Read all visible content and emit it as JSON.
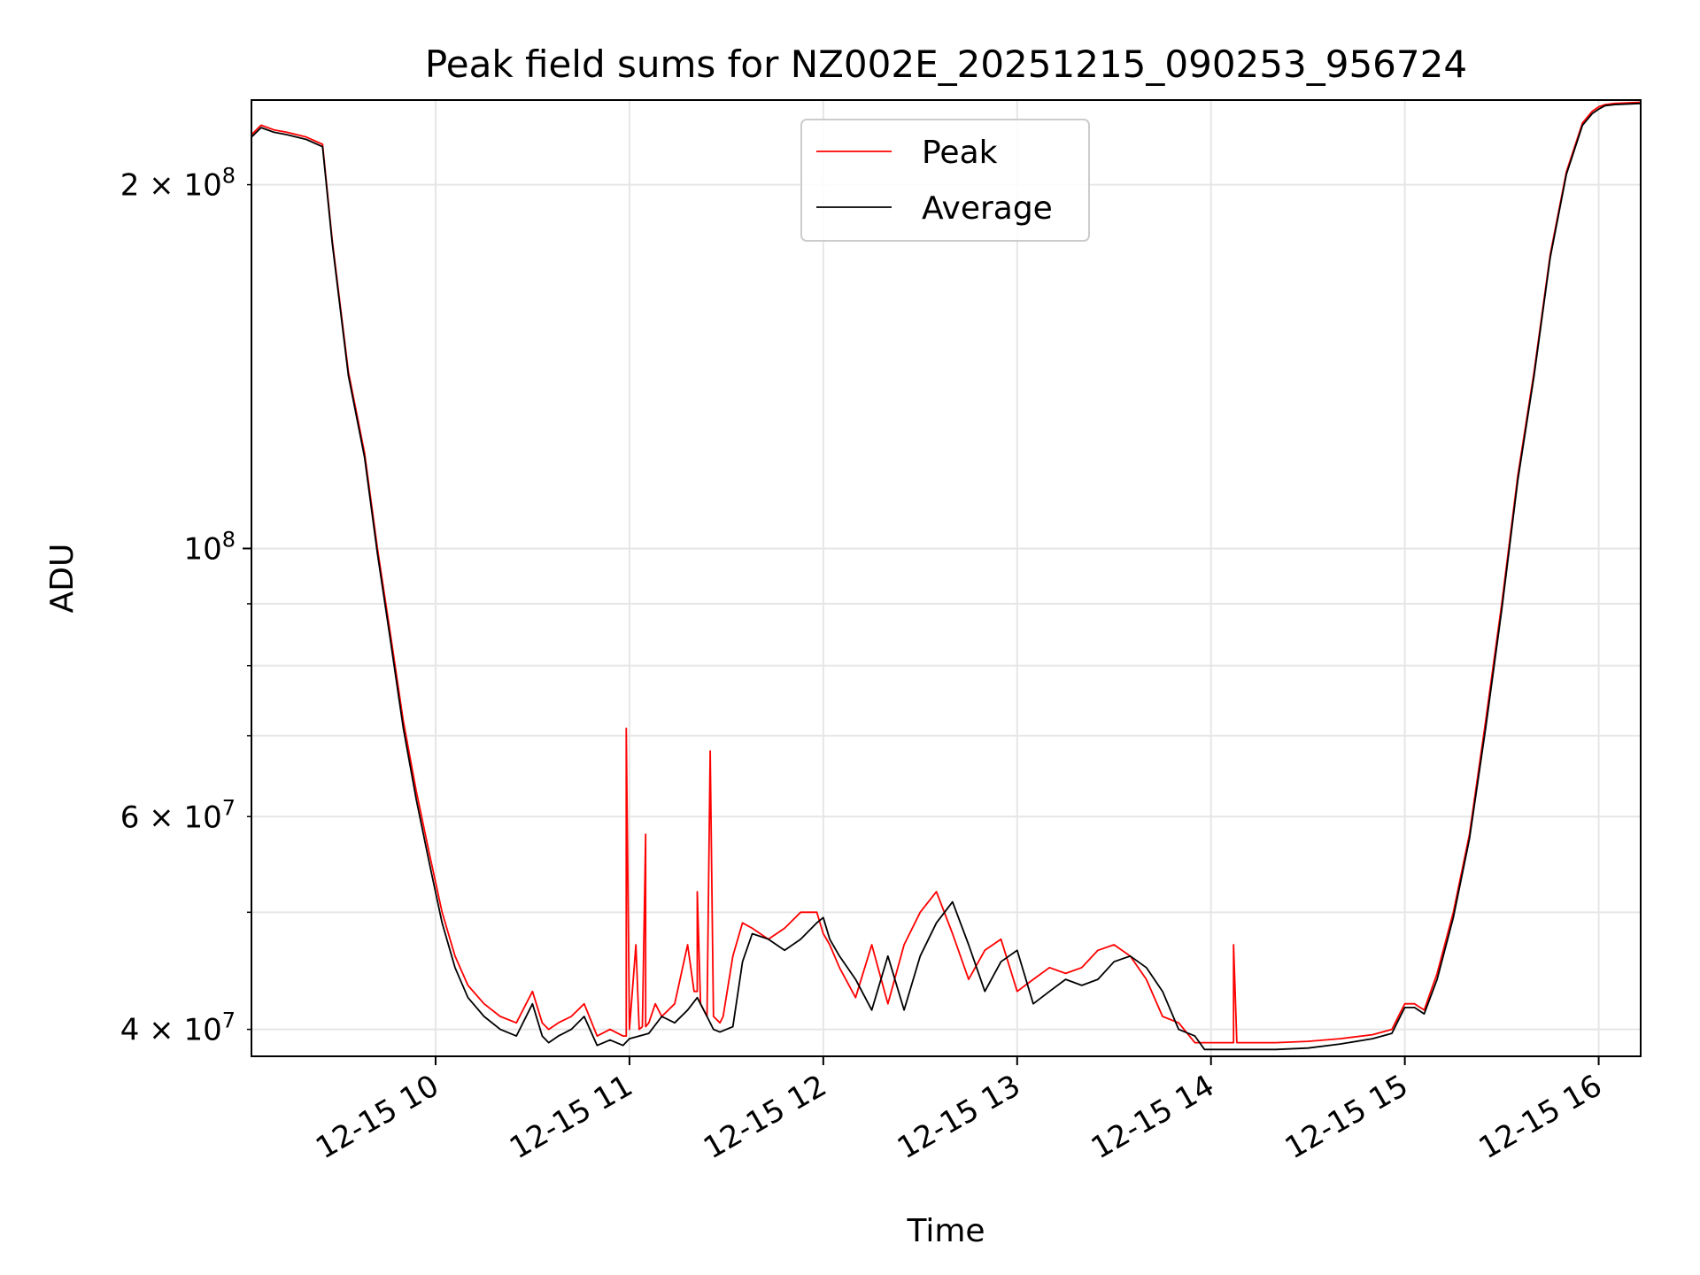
{
  "chart_data": {
    "type": "line",
    "title": "Peak field sums for NZ002E_20251215_090253_956724",
    "xlabel": "Time",
    "ylabel": "ADU",
    "y_scale": "log",
    "grid": true,
    "legend_position": "upper center",
    "xlim": [
      "2025-12-15 09:03",
      "2025-12-15 16:13"
    ],
    "ylim": [
      38000000,
      235000000
    ],
    "x_ticks": [
      {
        "t": "2025-12-15 10:00",
        "label": "12-15 10"
      },
      {
        "t": "2025-12-15 11:00",
        "label": "12-15 11"
      },
      {
        "t": "2025-12-15 12:00",
        "label": "12-15 12"
      },
      {
        "t": "2025-12-15 13:00",
        "label": "12-15 13"
      },
      {
        "t": "2025-12-15 14:00",
        "label": "12-15 14"
      },
      {
        "t": "2025-12-15 15:00",
        "label": "12-15 15"
      },
      {
        "t": "2025-12-15 16:00",
        "label": "12-15 16"
      }
    ],
    "y_major_ticks": [
      {
        "v": 100000000,
        "label": "10",
        "exp": "8",
        "coef": ""
      }
    ],
    "y_minor_ticks": [
      {
        "v": 40000000,
        "coef": "4 × 10",
        "exp": "7"
      },
      {
        "v": 60000000,
        "coef": "6 × 10",
        "exp": "7"
      },
      {
        "v": 200000000,
        "coef": "2 × 10",
        "exp": "8"
      }
    ],
    "y_minor_grid": [
      40000000,
      50000000,
      60000000,
      70000000,
      80000000,
      90000000,
      200000000
    ],
    "series": [
      {
        "name": "Peak",
        "color": "#ff0000",
        "x": [
          "09:03",
          "09:06",
          "09:10",
          "09:14",
          "09:20",
          "09:25",
          "09:28",
          "09:33",
          "09:38",
          "09:42",
          "09:46",
          "09:50",
          "09:54",
          "09:58",
          "10:02",
          "10:06",
          "10:10",
          "10:15",
          "10:20",
          "10:25",
          "10:30",
          "10:33",
          "10:35",
          "10:38",
          "10:42",
          "10:46",
          "10:50",
          "10:54",
          "10:58",
          "10:59",
          "10:59",
          "11:00",
          "11:02",
          "11:03",
          "11:03",
          "11:04",
          "11:05",
          "11:05",
          "11:06",
          "11:08",
          "11:10",
          "11:14",
          "11:18",
          "11:20",
          "11:21",
          "11:21",
          "11:22",
          "11:24",
          "11:24",
          "11:25",
          "11:26",
          "11:28",
          "11:28",
          "11:29",
          "11:32",
          "11:35",
          "11:38",
          "11:43",
          "11:48",
          "11:53",
          "11:58",
          "12:00",
          "12:02",
          "12:05",
          "12:10",
          "12:15",
          "12:20",
          "12:25",
          "12:30",
          "12:35",
          "12:40",
          "12:45",
          "12:50",
          "12:55",
          "13:00",
          "13:05",
          "13:10",
          "13:15",
          "13:20",
          "13:25",
          "13:30",
          "13:35",
          "13:40",
          "13:45",
          "13:50",
          "13:55",
          "13:58",
          "14:00",
          "14:05",
          "14:07",
          "14:07",
          "14:08",
          "14:10",
          "14:20",
          "14:30",
          "14:40",
          "14:50",
          "14:56",
          "14:58",
          "15:00",
          "15:03",
          "15:06",
          "15:10",
          "15:15",
          "15:20",
          "15:25",
          "15:30",
          "15:35",
          "15:40",
          "15:45",
          "15:50",
          "15:55",
          "15:58",
          "16:00",
          "16:02",
          "16:05",
          "16:13"
        ],
        "y": [
          220000000,
          224000000,
          222000000,
          221000000,
          219000000,
          216000000,
          180000000,
          140000000,
          120000000,
          100000000,
          85000000,
          72000000,
          63000000,
          56000000,
          50000000,
          46000000,
          43500000,
          42000000,
          41000000,
          40500000,
          43000000,
          40500000,
          40000000,
          40500000,
          41000000,
          42000000,
          39500000,
          40000000,
          39500000,
          39500000,
          71000000,
          40000000,
          47000000,
          40000000,
          40000000,
          40200000,
          58000000,
          40200000,
          40500000,
          42000000,
          41000000,
          42000000,
          47000000,
          43000000,
          43000000,
          52000000,
          42000000,
          41000000,
          41000000,
          68000000,
          41000000,
          40500000,
          40500000,
          41000000,
          46000000,
          49000000,
          48500000,
          47500000,
          48500000,
          50000000,
          50000000,
          48000000,
          47000000,
          45000000,
          42500000,
          47000000,
          42000000,
          47000000,
          50000000,
          52000000,
          48000000,
          44000000,
          46500000,
          47500000,
          43000000,
          44000000,
          45000000,
          44500000,
          45000000,
          46500000,
          47000000,
          46000000,
          44000000,
          41000000,
          40500000,
          39000000,
          39000000,
          39000000,
          39000000,
          39000000,
          47000000,
          39000000,
          39000000,
          39000000,
          39100000,
          39300000,
          39600000,
          40000000,
          41000000,
          42000000,
          42000000,
          41500000,
          44500000,
          50000000,
          58000000,
          72000000,
          90000000,
          115000000,
          140000000,
          175000000,
          205000000,
          225000000,
          230000000,
          232000000,
          233000000,
          233500000,
          234000000
        ]
      },
      {
        "name": "Average",
        "color": "#000000",
        "x": [
          "09:03",
          "09:06",
          "09:10",
          "09:14",
          "09:20",
          "09:25",
          "09:28",
          "09:33",
          "09:38",
          "09:42",
          "09:46",
          "09:50",
          "09:54",
          "09:58",
          "10:02",
          "10:06",
          "10:10",
          "10:15",
          "10:20",
          "10:25",
          "10:30",
          "10:33",
          "10:35",
          "10:38",
          "10:42",
          "10:46",
          "10:50",
          "10:54",
          "10:58",
          "11:00",
          "11:03",
          "11:06",
          "11:10",
          "11:14",
          "11:18",
          "11:21",
          "11:24",
          "11:26",
          "11:28",
          "11:32",
          "11:35",
          "11:38",
          "11:43",
          "11:48",
          "11:53",
          "11:58",
          "12:00",
          "12:02",
          "12:05",
          "12:10",
          "12:15",
          "12:20",
          "12:25",
          "12:30",
          "12:35",
          "12:40",
          "12:45",
          "12:50",
          "12:55",
          "13:00",
          "13:05",
          "13:10",
          "13:15",
          "13:20",
          "13:25",
          "13:30",
          "13:35",
          "13:40",
          "13:45",
          "13:50",
          "13:55",
          "13:58",
          "14:00",
          "14:10",
          "14:20",
          "14:30",
          "14:40",
          "14:50",
          "14:56",
          "14:58",
          "15:00",
          "15:03",
          "15:06",
          "15:10",
          "15:15",
          "15:20",
          "15:25",
          "15:30",
          "15:35",
          "15:40",
          "15:45",
          "15:50",
          "15:55",
          "15:58",
          "16:00",
          "16:02",
          "16:05",
          "16:13"
        ],
        "y": [
          219000000,
          223000000,
          221000000,
          220000000,
          218000000,
          215000000,
          179000000,
          139000000,
          119000000,
          99000000,
          84000000,
          71000000,
          62000000,
          55000000,
          49000000,
          45000000,
          42500000,
          41000000,
          40000000,
          39500000,
          42000000,
          39500000,
          39000000,
          39500000,
          40000000,
          41000000,
          38800000,
          39200000,
          38800000,
          39300000,
          39500000,
          39700000,
          41000000,
          40500000,
          41500000,
          42500000,
          41000000,
          40000000,
          39800000,
          40200000,
          45500000,
          48000000,
          47500000,
          46500000,
          47500000,
          49000000,
          49500000,
          47500000,
          46000000,
          44000000,
          41500000,
          46000000,
          41500000,
          46000000,
          49000000,
          51000000,
          47000000,
          43000000,
          45500000,
          46500000,
          42000000,
          43000000,
          44000000,
          43500000,
          44000000,
          45500000,
          46000000,
          45000000,
          43000000,
          40000000,
          39500000,
          38500000,
          38500000,
          38500000,
          38500000,
          38600000,
          38900000,
          39300000,
          39700000,
          40700000,
          41700000,
          41700000,
          41200000,
          44000000,
          49500000,
          57500000,
          71000000,
          89000000,
          114000000,
          139000000,
          174000000,
          204000000,
          224000000,
          229000000,
          231000000,
          232500000,
          233000000,
          233500000
        ]
      }
    ]
  }
}
